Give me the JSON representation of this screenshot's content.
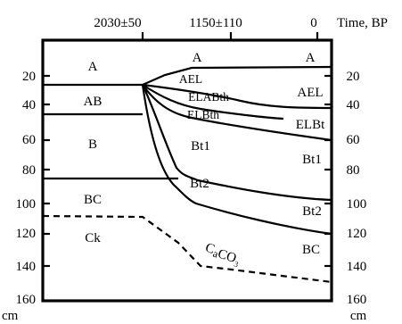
{
  "time_axis": {
    "label": "Time, BP",
    "ticks": [
      "2030±50",
      "1150±110",
      "0"
    ]
  },
  "depth_axis": {
    "unit_left": "cm",
    "unit_right": "cm",
    "ticks": [
      "20",
      "40",
      "60",
      "80",
      "100",
      "120",
      "140",
      "160"
    ]
  },
  "horizons": {
    "left": [
      "A",
      "AB",
      "B",
      "BC",
      "Ck"
    ],
    "middle": [
      "A",
      "AEL",
      "ELABth",
      "ELBth",
      "Bt1",
      "Bt2"
    ],
    "right": [
      "A",
      "AEL",
      "ELBt",
      "Bt1",
      "Bt2",
      "BC"
    ],
    "caco3": {
      "main": "C",
      "sub1": "a",
      "sub2": "CO",
      "sub3": "3"
    }
  }
}
